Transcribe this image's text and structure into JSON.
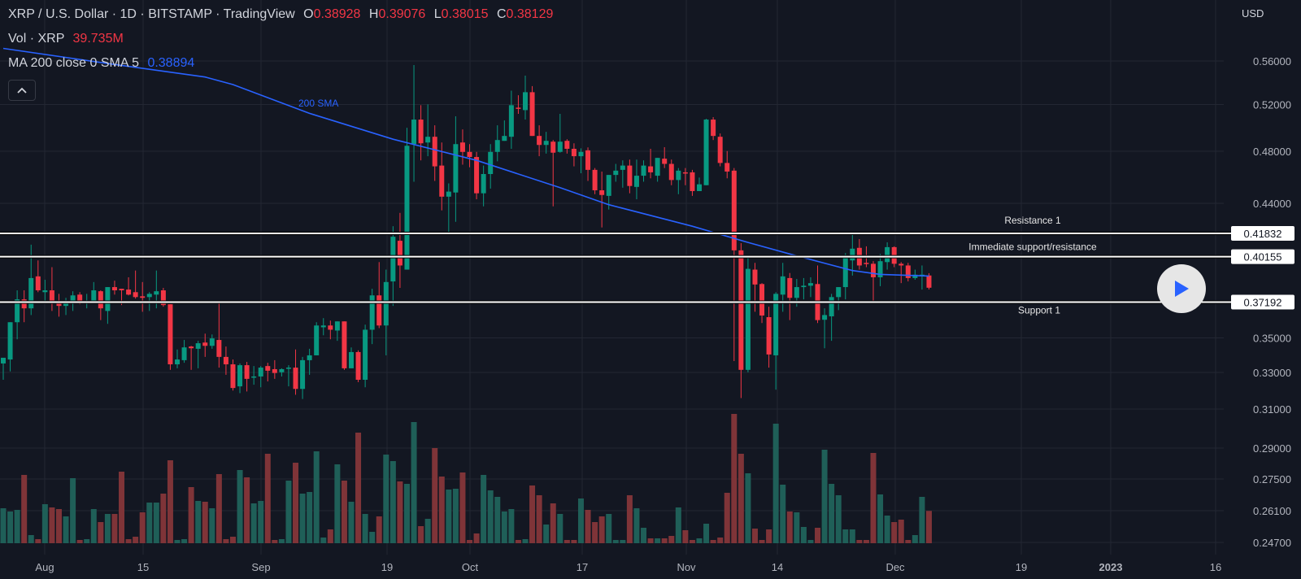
{
  "header": {
    "title": "XRP / U.S. Dollar · 1D · BITSTAMP · TradingView",
    "ohlc": {
      "o_label": "O",
      "o": "0.38928",
      "h_label": "H",
      "h": "0.39076",
      "l_label": "L",
      "l": "0.38015",
      "c_label": "C",
      "c": "0.38129"
    },
    "volume_label": "Vol · XRP",
    "volume_value": "39.735M",
    "ma_label": "MA 200 close 0 SMA 5",
    "ma_value": "0.38894",
    "collapse_icon": "chevron-up-icon"
  },
  "price_axis": {
    "currency": "USD",
    "ticks": [
      "0.56000",
      "0.52000",
      "0.48000",
      "0.44000",
      "0.35000",
      "0.33000",
      "0.31000",
      "0.29000",
      "0.27500",
      "0.26100",
      "0.24700"
    ]
  },
  "time_axis": {
    "ticks": [
      "Aug",
      "15",
      "Sep",
      "19",
      "Oct",
      "17",
      "Nov",
      "14",
      "Dec",
      "19",
      "2023",
      "16"
    ]
  },
  "levels": [
    {
      "name": "Resistance 1",
      "price": "0.41832"
    },
    {
      "name": "Immediate support/resistance",
      "price": "0.40155"
    },
    {
      "name": "Support 1",
      "price": "0.37192"
    }
  ],
  "sma_label": "200 SMA",
  "play_button": {
    "icon": "play-icon"
  },
  "colors": {
    "up": "#089981",
    "down": "#f23645",
    "up_volume": "#1f5f58",
    "down_volume": "#7f3438",
    "sma": "#2962ff",
    "background": "#131722",
    "level_line": "#ffffff"
  },
  "chart_data": {
    "type": "candlestick",
    "symbol": "XRP / U.S. Dollar",
    "interval": "1D",
    "price_scale": "log",
    "grid": true,
    "candle_fields": [
      "open",
      "high",
      "low",
      "close"
    ],
    "candles": [
      [
        0.3352,
        0.3385,
        0.326,
        0.3385
      ],
      [
        0.3375,
        0.3596,
        0.3306,
        0.3596
      ],
      [
        0.3596,
        0.3796,
        0.3492,
        0.3737
      ],
      [
        0.3737,
        0.3796,
        0.3596,
        0.3681
      ],
      [
        0.3681,
        0.4102,
        0.364,
        0.3876
      ],
      [
        0.3887,
        0.3991,
        0.3784,
        0.3796
      ],
      [
        0.3784,
        0.3865,
        0.3711,
        0.3796
      ],
      [
        0.3796,
        0.3947,
        0.3665,
        0.3716
      ],
      [
        0.3711,
        0.3773,
        0.363,
        0.3696
      ],
      [
        0.3696,
        0.3747,
        0.364,
        0.3716
      ],
      [
        0.3711,
        0.379,
        0.3665,
        0.3763
      ],
      [
        0.3768,
        0.3784,
        0.3706,
        0.3711
      ],
      [
        0.3716,
        0.3773,
        0.3681,
        0.3721
      ],
      [
        0.3716,
        0.385,
        0.3711,
        0.3796
      ],
      [
        0.379,
        0.3796,
        0.3609,
        0.3681
      ],
      [
        0.3665,
        0.3817,
        0.3586,
        0.3817
      ],
      [
        0.3817,
        0.3859,
        0.3768,
        0.3796
      ],
      [
        0.3806,
        0.3806,
        0.3701,
        0.3796
      ],
      [
        0.3801,
        0.3881,
        0.3763,
        0.3768
      ],
      [
        0.3784,
        0.3925,
        0.3742,
        0.3752
      ],
      [
        0.3757,
        0.385,
        0.366,
        0.3747
      ],
      [
        0.3752,
        0.3784,
        0.3665,
        0.3773
      ],
      [
        0.3768,
        0.3925,
        0.3681,
        0.379
      ],
      [
        0.3796,
        0.3812,
        0.3691,
        0.3701
      ],
      [
        0.3706,
        0.3706,
        0.3315,
        0.3347
      ],
      [
        0.3347,
        0.3433,
        0.3324,
        0.3375
      ],
      [
        0.3371,
        0.3488,
        0.3356,
        0.3445
      ],
      [
        0.345,
        0.3454,
        0.3315,
        0.344
      ],
      [
        0.3437,
        0.3483,
        0.3324,
        0.3469
      ],
      [
        0.3473,
        0.3526,
        0.339,
        0.3454
      ],
      [
        0.3454,
        0.3521,
        0.3437,
        0.3497
      ],
      [
        0.3488,
        0.3711,
        0.3328,
        0.339
      ],
      [
        0.339,
        0.345,
        0.3287,
        0.3347
      ],
      [
        0.3347,
        0.3375,
        0.3201,
        0.3215
      ],
      [
        0.3224,
        0.3352,
        0.3187,
        0.3342
      ],
      [
        0.3342,
        0.3361,
        0.3196,
        0.3265
      ],
      [
        0.3274,
        0.3337,
        0.3233,
        0.3278
      ],
      [
        0.3278,
        0.3337,
        0.3219,
        0.3328
      ],
      [
        0.3337,
        0.3356,
        0.3251,
        0.331
      ],
      [
        0.3319,
        0.3371,
        0.3265,
        0.3297
      ],
      [
        0.3301,
        0.3324,
        0.3278,
        0.3319
      ],
      [
        0.3324,
        0.3342,
        0.3224,
        0.3328
      ],
      [
        0.3328,
        0.3433,
        0.3178,
        0.321
      ],
      [
        0.321,
        0.339,
        0.3155,
        0.3371
      ],
      [
        0.3371,
        0.3437,
        0.3287,
        0.3399
      ],
      [
        0.3399,
        0.3596,
        0.3399,
        0.3576
      ],
      [
        0.3565,
        0.3621,
        0.3516,
        0.3576
      ],
      [
        0.3576,
        0.3606,
        0.3492,
        0.355
      ],
      [
        0.3545,
        0.3601,
        0.3483,
        0.3601
      ],
      [
        0.3601,
        0.3601,
        0.3315,
        0.3324
      ],
      [
        0.3324,
        0.3445,
        0.3324,
        0.3418
      ],
      [
        0.3418,
        0.3428,
        0.3247,
        0.326
      ],
      [
        0.326,
        0.3581,
        0.3219,
        0.355
      ],
      [
        0.355,
        0.3806,
        0.3464,
        0.3763
      ],
      [
        0.3763,
        0.398,
        0.356,
        0.3576
      ],
      [
        0.3576,
        0.3931,
        0.3399,
        0.385
      ],
      [
        0.3854,
        0.4235,
        0.3696,
        0.4159
      ],
      [
        0.413,
        0.4331,
        0.3812,
        0.3958
      ],
      [
        0.3931,
        0.5001,
        0.3931,
        0.4847
      ],
      [
        0.4861,
        0.5563,
        0.4566,
        0.5071
      ],
      [
        0.5071,
        0.5194,
        0.473,
        0.4868
      ],
      [
        0.4875,
        0.5201,
        0.4762,
        0.4924
      ],
      [
        0.4924,
        0.5022,
        0.4572,
        0.4684
      ],
      [
        0.469,
        0.4875,
        0.4349,
        0.4451
      ],
      [
        0.4451,
        0.4553,
        0.4177,
        0.449
      ],
      [
        0.4483,
        0.5099,
        0.4267,
        0.4861
      ],
      [
        0.4875,
        0.4987,
        0.4697,
        0.4795
      ],
      [
        0.4795,
        0.4861,
        0.4677,
        0.4756
      ],
      [
        0.4756,
        0.4795,
        0.4431,
        0.4477
      ],
      [
        0.4477,
        0.469,
        0.4378,
        0.4625
      ],
      [
        0.4625,
        0.4861,
        0.4513,
        0.4795
      ],
      [
        0.4795,
        0.5022,
        0.4723,
        0.4896
      ],
      [
        0.4889,
        0.5064,
        0.4889,
        0.4931
      ],
      [
        0.4924,
        0.5327,
        0.4821,
        0.5194
      ],
      [
        0.5173,
        0.5285,
        0.512,
        0.5166
      ],
      [
        0.5152,
        0.5465,
        0.5071,
        0.5313
      ],
      [
        0.5313,
        0.5369,
        0.4931,
        0.4931
      ],
      [
        0.4931,
        0.5022,
        0.4762,
        0.4854
      ],
      [
        0.4854,
        0.4966,
        0.4782,
        0.4889
      ],
      [
        0.4882,
        0.4896,
        0.4378,
        0.4789
      ],
      [
        0.4795,
        0.512,
        0.4789,
        0.4882
      ],
      [
        0.4889,
        0.4903,
        0.4782,
        0.4821
      ],
      [
        0.4821,
        0.4868,
        0.4684,
        0.4762
      ],
      [
        0.4762,
        0.4825,
        0.4631,
        0.4795
      ],
      [
        0.4808,
        0.4833,
        0.4572,
        0.4657
      ],
      [
        0.4657,
        0.4671,
        0.447,
        0.45
      ],
      [
        0.45,
        0.4644,
        0.4226,
        0.4464
      ],
      [
        0.4457,
        0.4618,
        0.4355,
        0.4618
      ],
      [
        0.4618,
        0.4703,
        0.4566,
        0.4651
      ],
      [
        0.4657,
        0.473,
        0.452,
        0.469
      ],
      [
        0.469,
        0.4736,
        0.4477,
        0.4533
      ],
      [
        0.4526,
        0.4736,
        0.4431,
        0.4612
      ],
      [
        0.4612,
        0.473,
        0.4566,
        0.469
      ],
      [
        0.4684,
        0.4821,
        0.4592,
        0.4638
      ],
      [
        0.4612,
        0.4749,
        0.4566,
        0.4749
      ],
      [
        0.4743,
        0.4835,
        0.4671,
        0.4703
      ],
      [
        0.4703,
        0.4736,
        0.4539,
        0.4579
      ],
      [
        0.4579,
        0.4671,
        0.447,
        0.4651
      ],
      [
        0.4638,
        0.4671,
        0.4539,
        0.4631
      ],
      [
        0.4638,
        0.4657,
        0.4457,
        0.4494
      ],
      [
        0.4494,
        0.4598,
        0.4494,
        0.4546
      ],
      [
        0.4539,
        0.5078,
        0.4539,
        0.5071
      ],
      [
        0.5071,
        0.5092,
        0.4896,
        0.4931
      ],
      [
        0.4924,
        0.4952,
        0.4684,
        0.471
      ],
      [
        0.471,
        0.4802,
        0.4592,
        0.4644
      ],
      [
        0.4651,
        0.4671,
        0.3366,
        0.4061
      ],
      [
        0.4061,
        0.4113,
        0.316,
        0.3315
      ],
      [
        0.3315,
        0.4013,
        0.3301,
        0.3936
      ],
      [
        0.3931,
        0.3975,
        0.366,
        0.3834
      ],
      [
        0.3837,
        0.3843,
        0.3591,
        0.3637
      ],
      [
        0.3627,
        0.3691,
        0.3328,
        0.3404
      ],
      [
        0.3399,
        0.3784,
        0.3206,
        0.3773
      ],
      [
        0.3768,
        0.3975,
        0.366,
        0.3887
      ],
      [
        0.3876,
        0.3909,
        0.3609,
        0.3747
      ],
      [
        0.3747,
        0.387,
        0.3691,
        0.3817
      ],
      [
        0.3817,
        0.3876,
        0.3737,
        0.3826
      ],
      [
        0.3826,
        0.3881,
        0.3752,
        0.3843
      ],
      [
        0.3837,
        0.3958,
        0.3591,
        0.3609
      ],
      [
        0.3611,
        0.3681,
        0.344,
        0.364
      ],
      [
        0.3632,
        0.3773,
        0.3483,
        0.3752
      ],
      [
        0.3752,
        0.3817,
        0.367,
        0.3817
      ],
      [
        0.3817,
        0.4041,
        0.3737,
        0.4013
      ],
      [
        0.3991,
        0.4188,
        0.3892,
        0.4073
      ],
      [
        0.4079,
        0.4142,
        0.3931,
        0.3958
      ],
      [
        0.3975,
        0.409,
        0.3947,
        0.3969
      ],
      [
        0.3969,
        0.3986,
        0.3716,
        0.3881
      ],
      [
        0.3881,
        0.4035,
        0.3823,
        0.3986
      ],
      [
        0.398,
        0.4119,
        0.3931,
        0.4084
      ],
      [
        0.4084,
        0.409,
        0.3947,
        0.3969
      ],
      [
        0.3969,
        0.398,
        0.3843,
        0.3958
      ],
      [
        0.3958,
        0.3975,
        0.3854,
        0.3876
      ],
      [
        0.3876,
        0.3931,
        0.3865,
        0.3898
      ],
      [
        0.3892,
        0.3958,
        0.3801,
        0.3898
      ],
      [
        0.38928,
        0.39076,
        0.38015,
        0.38129
      ]
    ],
    "volume_millions": [
      43,
      39,
      41,
      84,
      10,
      5,
      48,
      44,
      42,
      33,
      80,
      4,
      5,
      42,
      26,
      36,
      36,
      88,
      5,
      8,
      38,
      50,
      50,
      61,
      102,
      4,
      5,
      69,
      52,
      51,
      43,
      85,
      5,
      8,
      90,
      81,
      49,
      52,
      110,
      4,
      5,
      77,
      99,
      61,
      63,
      113,
      7,
      17,
      97,
      77,
      51,
      136,
      36,
      14,
      33,
      109,
      101,
      76,
      73,
      149,
      21,
      30,
      117,
      82,
      66,
      67,
      87,
      4,
      12,
      84,
      65,
      57,
      39,
      42,
      4,
      5,
      71,
      59,
      23,
      49,
      36,
      4,
      4,
      55,
      41,
      26,
      33,
      36,
      4,
      4,
      59,
      43,
      19,
      6,
      6,
      6,
      9,
      44,
      16,
      4,
      6,
      24,
      4,
      7,
      62,
      159,
      110,
      86,
      18,
      4,
      17,
      147,
      72,
      39,
      38,
      20,
      4,
      19,
      115,
      73,
      59,
      17,
      17,
      4,
      4,
      111,
      60,
      34,
      26,
      29,
      4,
      10,
      57,
      39.735
    ],
    "sma_200": [
      [
        1,
        0.5717
      ],
      [
        16,
        0.5577
      ],
      [
        30,
        0.5453
      ],
      [
        34,
        0.5383
      ],
      [
        45,
        0.5124
      ],
      [
        57,
        0.4903
      ],
      [
        69,
        0.473
      ],
      [
        81,
        0.452
      ],
      [
        88,
        0.439
      ],
      [
        100,
        0.4235
      ],
      [
        108,
        0.4118
      ],
      [
        114,
        0.4035
      ],
      [
        123,
        0.3925
      ],
      [
        127,
        0.39
      ],
      [
        134,
        0.38894
      ]
    ]
  }
}
